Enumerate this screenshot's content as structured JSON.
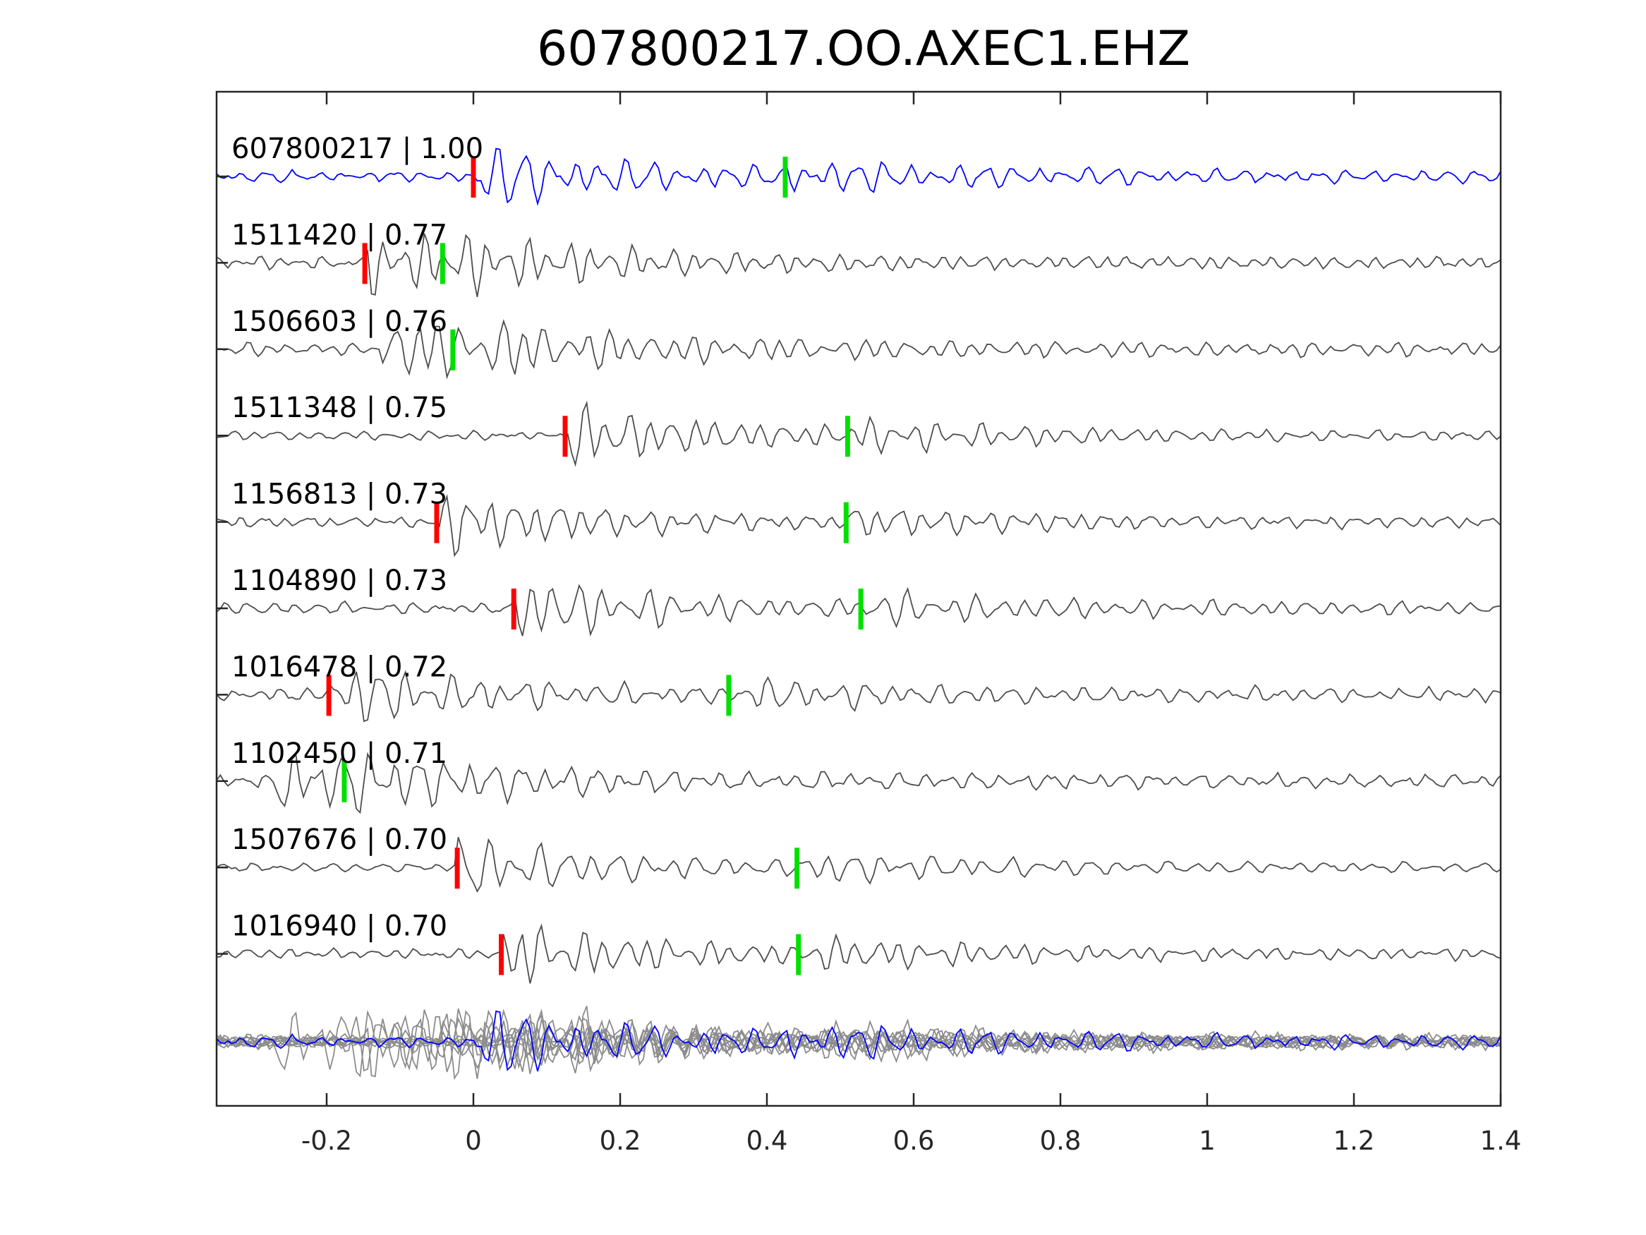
{
  "chart_data": {
    "type": "line",
    "title": "607800217.OO.AXEC1.EHZ",
    "xlabel": "",
    "ylabel": "",
    "xlim": [
      -0.35,
      1.4
    ],
    "xticks": [
      {
        "value": -0.2,
        "label": "-0.2"
      },
      {
        "value": 0,
        "label": "0"
      },
      {
        "value": 0.2,
        "label": "0.2"
      },
      {
        "value": 0.4,
        "label": "0.4"
      },
      {
        "value": 0.6,
        "label": "0.6"
      },
      {
        "value": 0.8,
        "label": "0.8"
      },
      {
        "value": 1,
        "label": "1"
      },
      {
        "value": 1.2,
        "label": "1.2"
      },
      {
        "value": 1.4,
        "label": "1.4"
      }
    ],
    "grid": false,
    "colors": {
      "reference": "#0000ff",
      "trace": "#4d4d4d",
      "stack": "#8c8c8c",
      "p_pick": "#ff0000",
      "s_pick": "#00e000"
    },
    "traces": [
      {
        "label": "607800217 | 1.00",
        "p_pick": 0.0,
        "s_pick": 0.425,
        "reference": true
      },
      {
        "label": "1511420 | 0.77",
        "p_pick": -0.148,
        "s_pick": -0.042
      },
      {
        "label": "1506603 | 0.76",
        "p_pick": null,
        "s_pick": -0.028
      },
      {
        "label": "1511348 | 0.75",
        "p_pick": 0.125,
        "s_pick": 0.51
      },
      {
        "label": "1156813 | 0.73",
        "p_pick": -0.05,
        "s_pick": 0.508
      },
      {
        "label": "1104890 | 0.73",
        "p_pick": 0.055,
        "s_pick": 0.528
      },
      {
        "label": "1016478 | 0.72",
        "p_pick": -0.197,
        "s_pick": 0.348
      },
      {
        "label": "1102450 | 0.71",
        "p_pick": null,
        "s_pick": -0.176
      },
      {
        "label": "1507676 | 0.70",
        "p_pick": -0.022,
        "s_pick": 0.441
      },
      {
        "label": "1016940 | 0.70",
        "p_pick": 0.038,
        "s_pick": 0.443
      }
    ]
  }
}
